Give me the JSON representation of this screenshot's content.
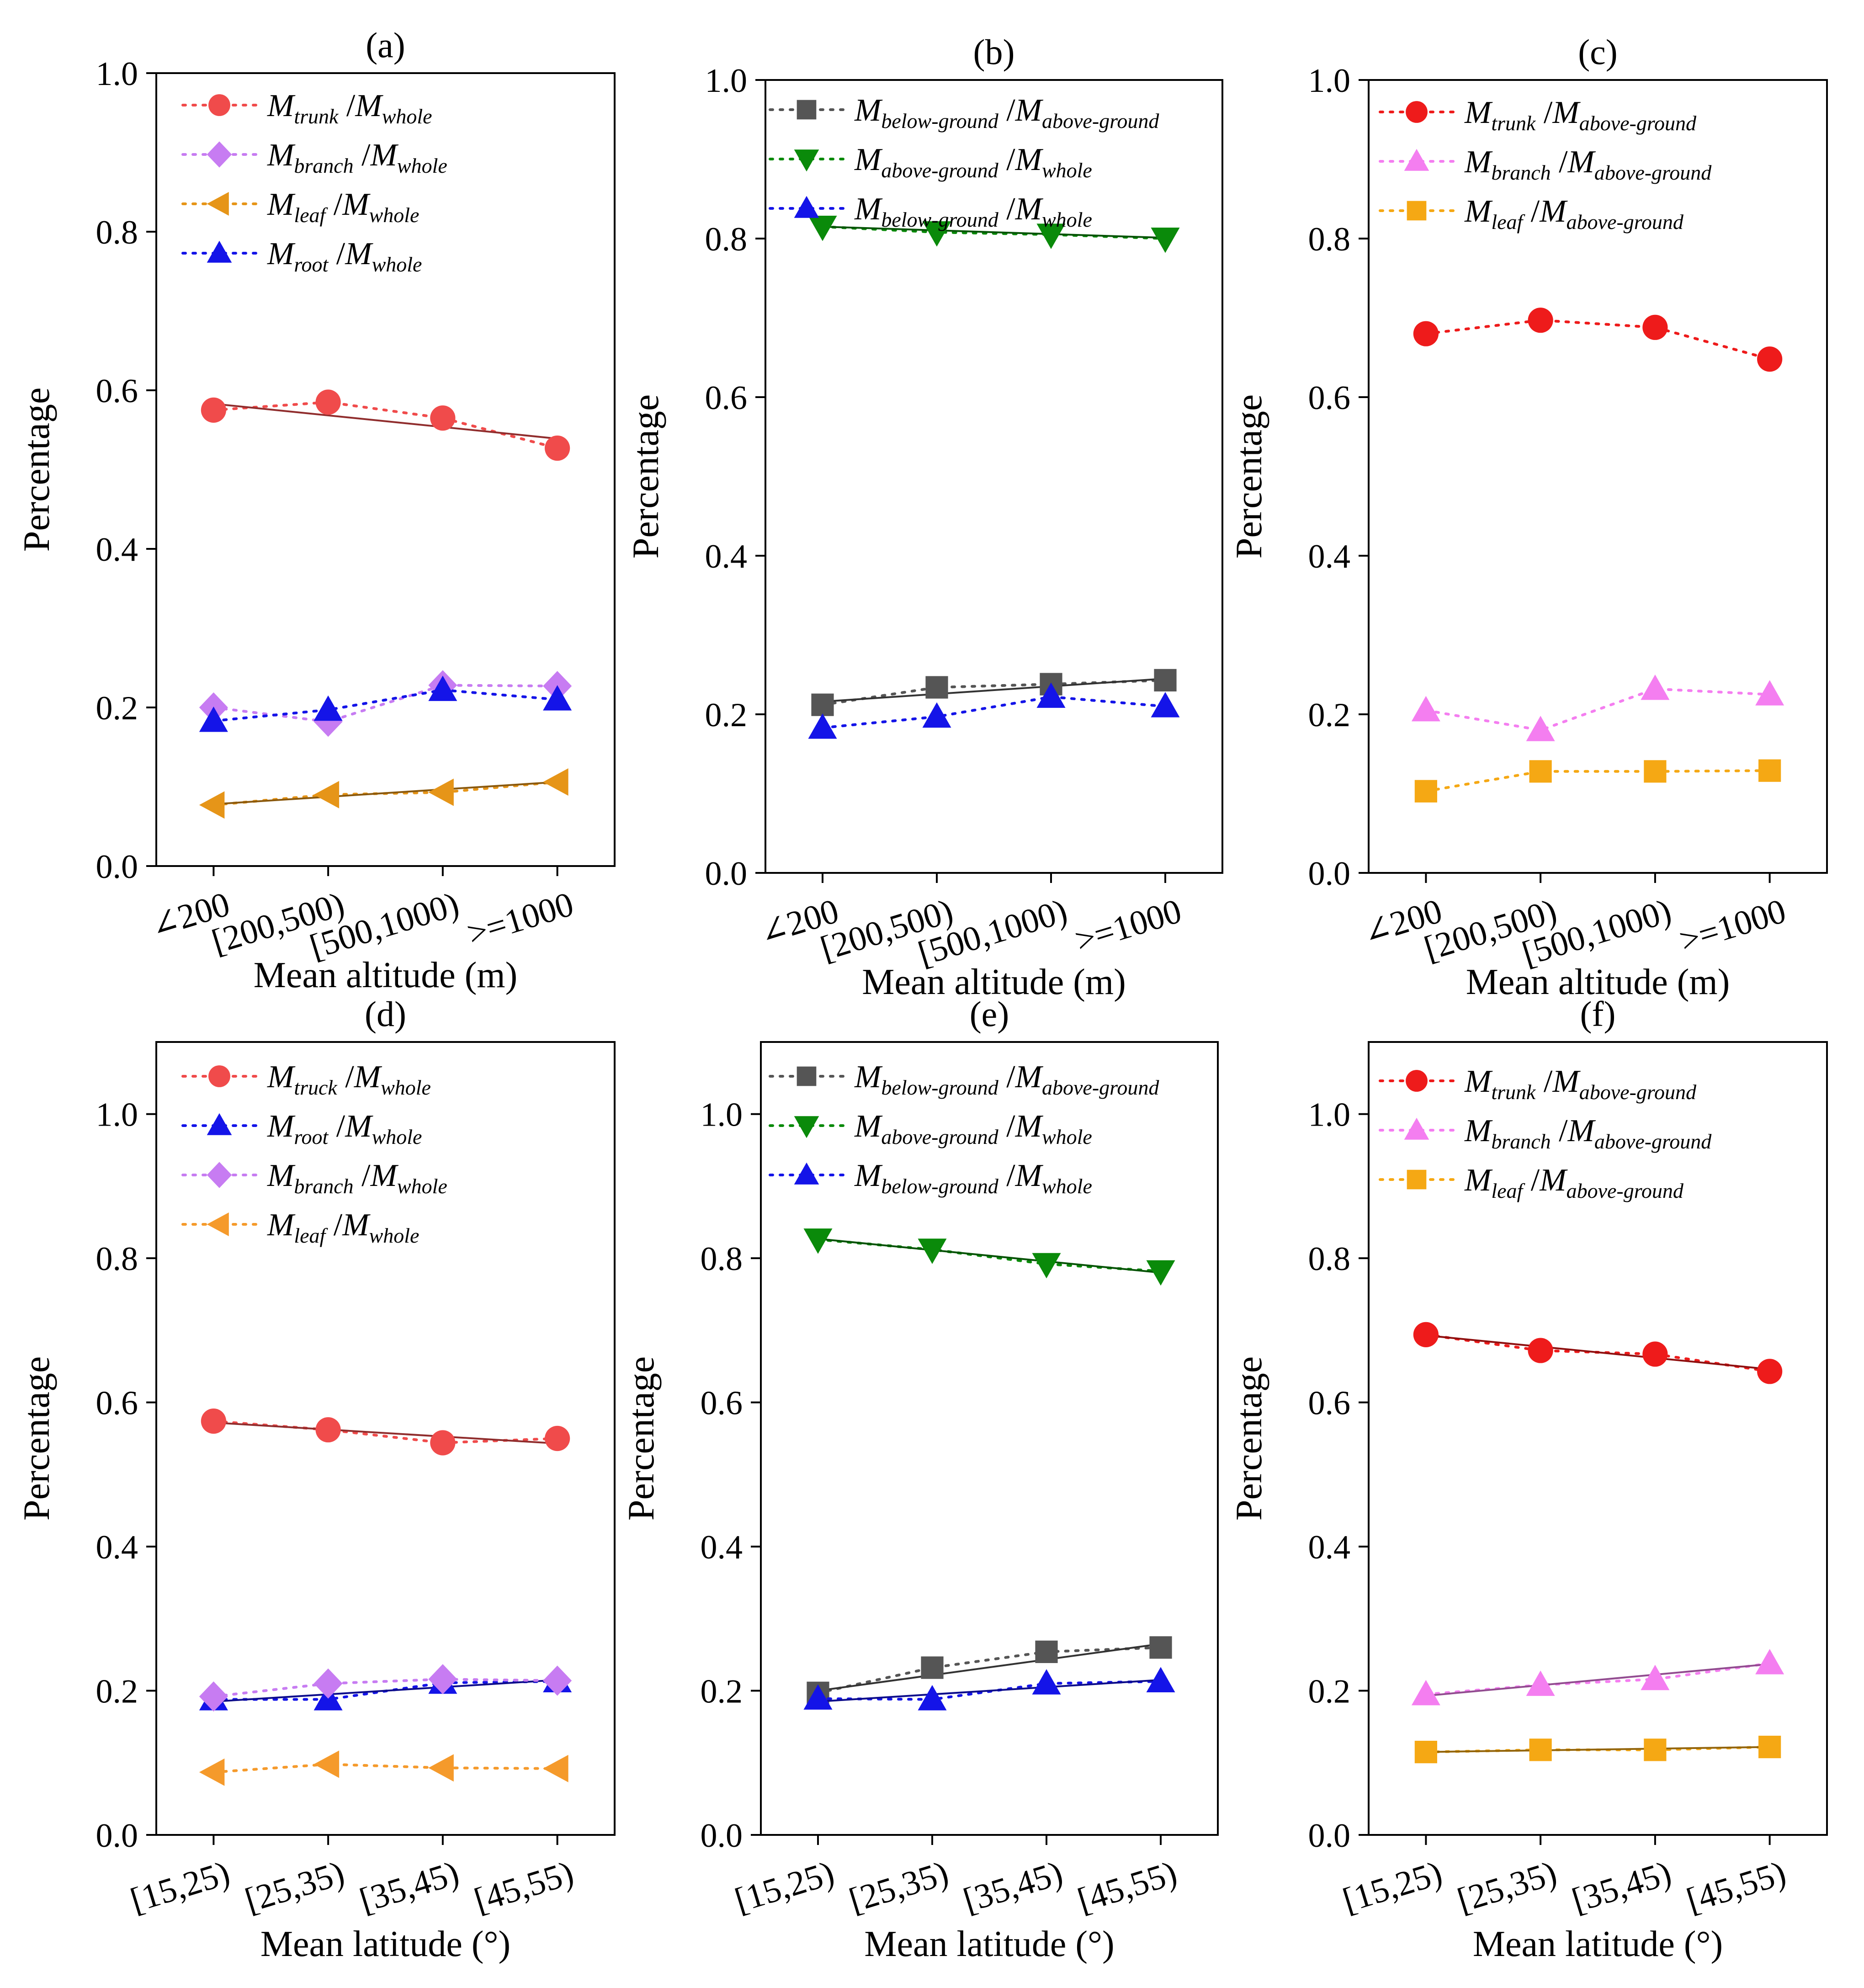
{
  "figure": {
    "panels_count": 6
  },
  "chart_data": [
    {
      "type": "line",
      "panel_label": "(a)",
      "xlabel": "Mean altitude (m)",
      "ylabel": "Percentage",
      "categories": [
        "∠200",
        "[200,500)",
        "[500,1000)",
        ">=1000"
      ],
      "ylim": [
        0,
        1.0
      ],
      "yticks": [
        "0.0",
        "0.2",
        "0.4",
        "0.6",
        "0.8",
        "1.0"
      ],
      "series": [
        {
          "name": "trunk/whole",
          "legend": {
            "m1": "trunk",
            "m2": "whole"
          },
          "marker": "circle",
          "color": "#f04b4b",
          "values": [
            0.575,
            0.585,
            0.565,
            0.527
          ],
          "trend": [
            0.583,
            0.539
          ]
        },
        {
          "name": "branch/whole",
          "legend": {
            "m1": "branch",
            "m2": "whole"
          },
          "marker": "diamond",
          "color": "#c77cf2",
          "values": [
            0.2,
            0.182,
            0.228,
            0.227
          ]
        },
        {
          "name": "leaf/whole",
          "legend": {
            "m1": "leaf",
            "m2": "whole"
          },
          "marker": "triangle-left",
          "color": "#e69518",
          "values": [
            0.077,
            0.09,
            0.093,
            0.106
          ],
          "trend": [
            0.078,
            0.106
          ]
        },
        {
          "name": "root/whole",
          "legend": {
            "m1": "root",
            "m2": "whole"
          },
          "marker": "triangle-up",
          "color": "#1414e8",
          "values": [
            0.183,
            0.197,
            0.222,
            0.21
          ]
        }
      ]
    },
    {
      "type": "line",
      "panel_label": "(b)",
      "xlabel": "Mean altitude (m)",
      "ylabel": "Percentage",
      "categories": [
        "∠200",
        "[200,500)",
        "[500,1000)",
        ">=1000"
      ],
      "ylim": [
        0,
        1.0
      ],
      "yticks": [
        "0.0",
        "0.2",
        "0.4",
        "0.6",
        "0.8",
        "1.0"
      ],
      "series": [
        {
          "name": "below-ground/above-ground",
          "legend": {
            "m1": "below-ground",
            "m2": "above-ground"
          },
          "marker": "square",
          "color": "#555555",
          "values": [
            0.212,
            0.234,
            0.238,
            0.243
          ],
          "trend": [
            0.216,
            0.245
          ]
        },
        {
          "name": "above-ground/whole",
          "legend": {
            "m1": "above-ground",
            "m2": "whole"
          },
          "marker": "triangle-down",
          "color": "#0a8a0a",
          "values": [
            0.815,
            0.808,
            0.805,
            0.8
          ],
          "trend": [
            0.815,
            0.801
          ]
        },
        {
          "name": "below-ground/whole",
          "legend": {
            "m1": "below-ground",
            "m2": "whole"
          },
          "marker": "triangle-up",
          "color": "#1414e8",
          "values": [
            0.183,
            0.197,
            0.222,
            0.21
          ]
        }
      ]
    },
    {
      "type": "line",
      "panel_label": "(c)",
      "xlabel": "Mean altitude (m)",
      "ylabel": "Percentage",
      "categories": [
        "∠200",
        "[200,500)",
        "[500,1000)",
        ">=1000"
      ],
      "ylim": [
        0,
        1.0
      ],
      "yticks": [
        "0.0",
        "0.2",
        "0.4",
        "0.6",
        "0.8",
        "1.0"
      ],
      "series": [
        {
          "name": "trunk/above-ground",
          "legend": {
            "m1": "trunk",
            "m2": "above-ground"
          },
          "marker": "circle",
          "color": "#ee1b1b",
          "values": [
            0.68,
            0.697,
            0.688,
            0.648
          ]
        },
        {
          "name": "branch/above-ground",
          "legend": {
            "m1": "branch",
            "m2": "above-ground"
          },
          "marker": "triangle-up",
          "color": "#f47ef0",
          "values": [
            0.205,
            0.18,
            0.232,
            0.225
          ]
        },
        {
          "name": "leaf/above-ground",
          "legend": {
            "m1": "leaf",
            "m2": "above-ground"
          },
          "marker": "square",
          "color": "#f5a814",
          "values": [
            0.103,
            0.128,
            0.128,
            0.129
          ]
        }
      ]
    },
    {
      "type": "line",
      "panel_label": "(d)",
      "xlabel": "Mean latitude (°)",
      "ylabel": "Percentage",
      "categories": [
        "[15,25)",
        "[25,35)",
        "[35,45)",
        "[45,55)"
      ],
      "ylim": [
        0,
        1.1
      ],
      "yticks": [
        "0.0",
        "0.2",
        "0.4",
        "0.6",
        "0.8",
        "1.0"
      ],
      "series": [
        {
          "name": "truck/whole",
          "legend": {
            "m1": "truck",
            "m2": "whole"
          },
          "marker": "circle",
          "color": "#f04b4b",
          "values": [
            0.574,
            0.562,
            0.544,
            0.55
          ],
          "trend": [
            0.572,
            0.543
          ]
        },
        {
          "name": "root/whole",
          "legend": {
            "m1": "root",
            "m2": "whole"
          },
          "marker": "triangle-up",
          "color": "#1414e8",
          "values": [
            0.188,
            0.188,
            0.211,
            0.213
          ],
          "trend": [
            0.185,
            0.215
          ]
        },
        {
          "name": "branch/whole",
          "legend": {
            "m1": "branch",
            "m2": "whole"
          },
          "marker": "diamond",
          "color": "#c77cf2",
          "values": [
            0.192,
            0.21,
            0.216,
            0.214
          ]
        },
        {
          "name": "leaf/whole",
          "legend": {
            "m1": "leaf",
            "m2": "whole"
          },
          "marker": "triangle-left",
          "color": "#f59a2b",
          "values": [
            0.087,
            0.098,
            0.093,
            0.092
          ]
        }
      ]
    },
    {
      "type": "line",
      "panel_label": "(e)",
      "xlabel": "Mean latitude (°)",
      "ylabel": "Percentage",
      "categories": [
        "[15,25)",
        "[25,35)",
        "[35,45)",
        "[45,55)"
      ],
      "ylim": [
        0,
        1.1
      ],
      "yticks": [
        "0.0",
        "0.2",
        "0.4",
        "0.6",
        "0.8",
        "1.0"
      ],
      "series": [
        {
          "name": "below-ground/above-ground",
          "legend": {
            "m1": "below-ground",
            "m2": "above-ground"
          },
          "marker": "square",
          "color": "#555555",
          "values": [
            0.197,
            0.232,
            0.254,
            0.26
          ],
          "trend": [
            0.2,
            0.265
          ]
        },
        {
          "name": "above-ground/whole",
          "legend": {
            "m1": "above-ground",
            "m2": "whole"
          },
          "marker": "triangle-down",
          "color": "#0a8a0a",
          "values": [
            0.826,
            0.812,
            0.792,
            0.782
          ],
          "trend": [
            0.827,
            0.78
          ]
        },
        {
          "name": "below-ground/whole",
          "legend": {
            "m1": "below-ground",
            "m2": "whole"
          },
          "marker": "triangle-up",
          "color": "#1414e8",
          "values": [
            0.189,
            0.188,
            0.21,
            0.213
          ],
          "trend": [
            0.185,
            0.215
          ]
        }
      ]
    },
    {
      "type": "line",
      "panel_label": "(f)",
      "xlabel": "Mean latitude (°)",
      "ylabel": "Percentage",
      "categories": [
        "[15,25)",
        "[25,35)",
        "[35,45)",
        "[45,55)"
      ],
      "ylim": [
        0,
        1.1
      ],
      "yticks": [
        "0.0",
        "0.2",
        "0.4",
        "0.6",
        "0.8",
        "1.0"
      ],
      "series": [
        {
          "name": "trunk/above-ground",
          "legend": {
            "m1": "trunk",
            "m2": "above-ground"
          },
          "marker": "circle",
          "color": "#ee1b1b",
          "values": [
            0.694,
            0.672,
            0.667,
            0.643
          ],
          "trend": [
            0.693,
            0.646
          ]
        },
        {
          "name": "branch/above-ground",
          "legend": {
            "m1": "branch",
            "m2": "above-ground"
          },
          "marker": "triangle-up",
          "color": "#f47ef0",
          "values": [
            0.195,
            0.208,
            0.216,
            0.238
          ],
          "trend": [
            0.193,
            0.237
          ]
        },
        {
          "name": "leaf/above-ground",
          "legend": {
            "m1": "leaf",
            "m2": "above-ground"
          },
          "marker": "square",
          "color": "#f5a814",
          "values": [
            0.115,
            0.118,
            0.118,
            0.122
          ],
          "trend": [
            0.115,
            0.122
          ]
        }
      ]
    }
  ]
}
